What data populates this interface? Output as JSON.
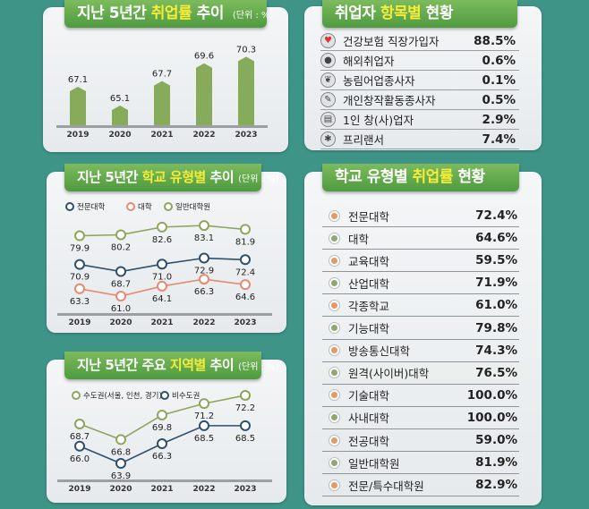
{
  "panels": {
    "rate": {
      "pre": "지난 5년간 ",
      "hl": "취업률",
      "post": " 추이",
      "unit": "(단위 : %)"
    },
    "school": {
      "pre": "지난 5년간 ",
      "hl": "학교 유형별",
      "post": " 추이",
      "unit": "(단위 : %)"
    },
    "region": {
      "pre": "지난 5년간 주요 ",
      "hl": "지역별",
      "post": " 추이",
      "unit": "(단위 : %)"
    },
    "items": {
      "pre": "취업자 ",
      "hl": "항목별",
      "post": " 현황"
    },
    "schoolRate": {
      "pre": "학교 유형별 ",
      "hl": "취업률",
      "post": " 현황"
    }
  },
  "items": [
    {
      "label": "건강보험 직장가입자",
      "value": "88.5%",
      "icon": "heart-hand-icon"
    },
    {
      "label": "해외취업자",
      "value": "0.6%",
      "icon": "globe-icon"
    },
    {
      "label": "농림어업종사자",
      "value": "0.1%",
      "icon": "sprout-icon"
    },
    {
      "label": "개인창작활동종사자",
      "value": "0.5%",
      "icon": "creative-icon"
    },
    {
      "label": "1인 창(사)업자",
      "value": "2.9%",
      "icon": "business-icon"
    },
    {
      "label": "프리랜서",
      "value": "7.4%",
      "icon": "freelancer-icon"
    }
  ],
  "schools": [
    {
      "label": "전문대학",
      "value": "72.4%",
      "dot": "#e39a66"
    },
    {
      "label": "대학",
      "value": "64.6%",
      "dot": "#8fa872"
    },
    {
      "label": "교육대학",
      "value": "59.5%",
      "dot": "#e39a66"
    },
    {
      "label": "산업대학",
      "value": "71.9%",
      "dot": "#8fa872"
    },
    {
      "label": "각종학교",
      "value": "61.0%",
      "dot": "#e39a66"
    },
    {
      "label": "기능대학",
      "value": "79.8%",
      "dot": "#8fa872"
    },
    {
      "label": "방송통신대학",
      "value": "74.3%",
      "dot": "#e39a66"
    },
    {
      "label": "원격(사이버)대학",
      "value": "76.5%",
      "dot": "#8fa872"
    },
    {
      "label": "기술대학",
      "value": "100.0%",
      "dot": "#e39a66"
    },
    {
      "label": "사내대학",
      "value": "100.0%",
      "dot": "#8fa872"
    },
    {
      "label": "전공대학",
      "value": "59.0%",
      "dot": "#e39a66"
    },
    {
      "label": "일반대학원",
      "value": "81.9%",
      "dot": "#8fa872"
    },
    {
      "label": "전문/특수대학원",
      "value": "82.9%",
      "dot": "#e39a66"
    }
  ],
  "chart_data": [
    {
      "type": "bar",
      "title": "지난 5년간 취업률 추이",
      "unit": "(단위 : %)",
      "categories": [
        "2019",
        "2020",
        "2021",
        "2022",
        "2023"
      ],
      "values": [
        67.1,
        65.1,
        67.7,
        69.6,
        70.3
      ],
      "color": "#86ab5a"
    },
    {
      "type": "line",
      "title": "지난 5년간 학교 유형별 추이",
      "unit": "(단위 : %)",
      "categories": [
        "2019",
        "2020",
        "2021",
        "2022",
        "2023"
      ],
      "legend": "top-left",
      "series": [
        {
          "name": "전문대학",
          "values": [
            70.9,
            68.7,
            71.0,
            72.9,
            72.4
          ],
          "color": "#2f4f6b"
        },
        {
          "name": "대학",
          "values": [
            63.3,
            61.0,
            64.1,
            66.3,
            64.6
          ],
          "color": "#e58b72"
        },
        {
          "name": "일반대학원",
          "values": [
            79.9,
            80.2,
            82.6,
            83.1,
            81.9
          ],
          "color": "#8fa55e"
        }
      ]
    },
    {
      "type": "line",
      "title": "지난 5년간 주요 지역별 추이",
      "unit": "(단위 : %)",
      "categories": [
        "2019",
        "2020",
        "2021",
        "2022",
        "2023"
      ],
      "legend": "top-left",
      "series": [
        {
          "name": "수도권(서울, 인천, 경기)",
          "values": [
            68.7,
            66.8,
            69.8,
            71.2,
            72.2
          ],
          "color": "#8fa55e"
        },
        {
          "name": "비수도권",
          "values": [
            66.0,
            63.9,
            66.3,
            68.5,
            68.5
          ],
          "color": "#2f4f6b"
        }
      ]
    }
  ]
}
